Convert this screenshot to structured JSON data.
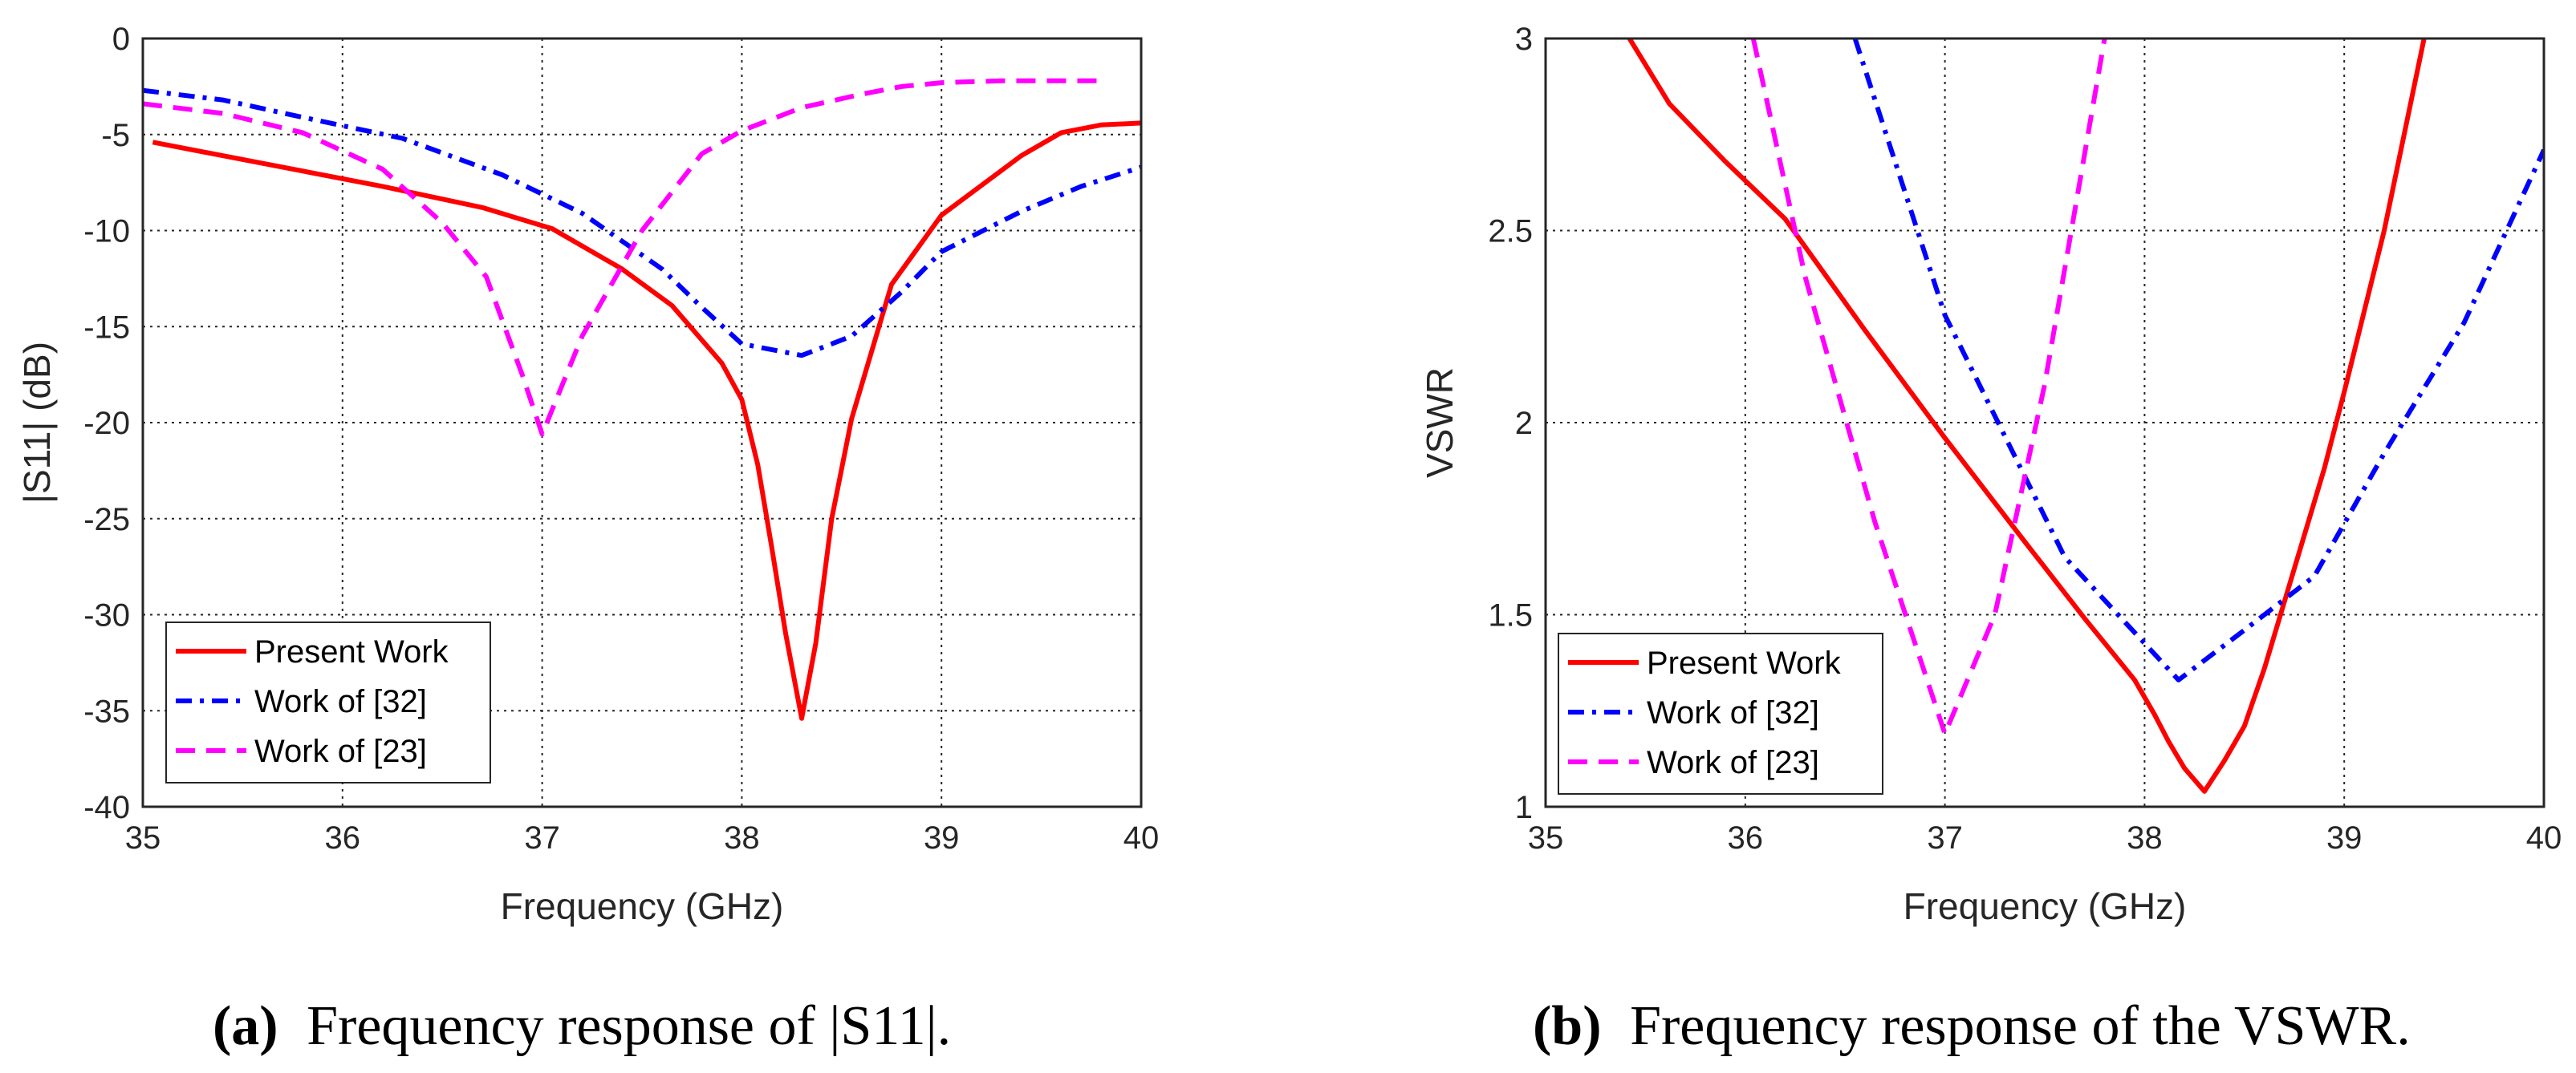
{
  "chart_data": [
    {
      "type": "line",
      "caption": {
        "label": "(a)",
        "text": "Frequency response of |S11|."
      },
      "xlabel": "Frequency (GHz)",
      "ylabel": "|S11| (dB)",
      "xlim": [
        35,
        40
      ],
      "ylim": [
        -40,
        0
      ],
      "xticks": [
        35,
        36,
        37,
        38,
        39,
        40
      ],
      "yticks": [
        0,
        -5,
        -10,
        -15,
        -20,
        -25,
        -30,
        -35,
        -40
      ],
      "grid": true,
      "legend_position": "bottom-left",
      "series": [
        {
          "name": "Present Work",
          "color": "#ff0000",
          "style": "solid",
          "x": [
            35.05,
            35.6,
            36.2,
            36.7,
            37.05,
            37.4,
            37.65,
            37.9,
            38.0,
            38.08,
            38.15,
            38.22,
            38.3,
            38.37,
            38.45,
            38.55,
            38.65,
            38.75,
            39.0,
            39.4,
            39.6,
            39.8,
            40.0
          ],
          "y": [
            -5.4,
            -6.5,
            -7.7,
            -8.8,
            -9.9,
            -12.0,
            -13.9,
            -16.9,
            -18.8,
            -22.2,
            -26.5,
            -31.0,
            -35.4,
            -31.5,
            -25.0,
            -19.8,
            -16.3,
            -12.8,
            -9.2,
            -6.1,
            -4.9,
            -4.5,
            -4.4
          ]
        },
        {
          "name": "Work of [32]",
          "color": "#0000ff",
          "style": "dashdot",
          "x": [
            35.0,
            35.4,
            35.8,
            36.3,
            36.8,
            37.2,
            37.6,
            37.8,
            38.0,
            38.3,
            38.55,
            38.8,
            39.0,
            39.4,
            39.7,
            40.0
          ],
          "y": [
            -2.7,
            -3.2,
            -4.1,
            -5.2,
            -7.1,
            -9.1,
            -12.0,
            -14.0,
            -15.9,
            -16.5,
            -15.5,
            -13.2,
            -11.1,
            -9.0,
            -7.7,
            -6.7
          ]
        },
        {
          "name": "Work of [23]",
          "color": "#ff00ff",
          "style": "dashed",
          "x": [
            35.0,
            35.4,
            35.8,
            36.2,
            36.5,
            36.72,
            36.9,
            37.0,
            37.2,
            37.5,
            37.8,
            38.0,
            38.3,
            38.6,
            38.8,
            39.0,
            39.3,
            39.6,
            39.8
          ],
          "y": [
            -3.4,
            -3.9,
            -4.9,
            -6.8,
            -9.6,
            -12.4,
            -17.5,
            -20.6,
            -15.5,
            -10.0,
            -6.0,
            -4.8,
            -3.6,
            -2.9,
            -2.5,
            -2.3,
            -2.2,
            -2.2,
            -2.2
          ]
        }
      ]
    },
    {
      "type": "line",
      "caption": {
        "label": "(b)",
        "text": "Frequency response of the VSWR."
      },
      "xlabel": "Frequency (GHz)",
      "ylabel": "VSWR",
      "xlim": [
        35,
        40
      ],
      "ylim": [
        1,
        3
      ],
      "xticks": [
        35,
        36,
        37,
        38,
        39,
        40
      ],
      "yticks": [
        3,
        2.5,
        2,
        1.5,
        1
      ],
      "grid": true,
      "legend_position": "bottom-left",
      "series": [
        {
          "name": "Present Work",
          "color": "#ff0000",
          "style": "solid",
          "x": [
            35.42,
            35.62,
            35.9,
            36.2,
            36.6,
            37.0,
            37.4,
            37.7,
            37.95,
            38.05,
            38.12,
            38.2,
            38.3,
            38.4,
            38.5,
            38.6,
            38.75,
            38.9,
            39.0,
            39.2,
            39.4
          ],
          "y": [
            3.0,
            2.83,
            2.68,
            2.53,
            2.24,
            1.96,
            1.69,
            1.49,
            1.33,
            1.24,
            1.17,
            1.1,
            1.04,
            1.12,
            1.21,
            1.36,
            1.62,
            1.88,
            2.08,
            2.5,
            3.0
          ]
        },
        {
          "name": "Work of [32]",
          "color": "#0000ff",
          "style": "dashdot",
          "x": [
            36.55,
            37.0,
            37.6,
            38.17,
            38.5,
            38.85,
            39.2,
            39.6,
            40.0
          ],
          "y": [
            3.0,
            2.28,
            1.65,
            1.33,
            1.46,
            1.6,
            1.92,
            2.26,
            2.71
          ]
        },
        {
          "name": "Work of [23]",
          "color": "#ff00ff",
          "style": "dashed",
          "x": [
            36.04,
            36.3,
            36.65,
            37.0,
            37.25,
            37.5,
            37.8
          ],
          "y": [
            3.0,
            2.38,
            1.74,
            1.19,
            1.5,
            2.1,
            3.0
          ]
        }
      ]
    }
  ]
}
